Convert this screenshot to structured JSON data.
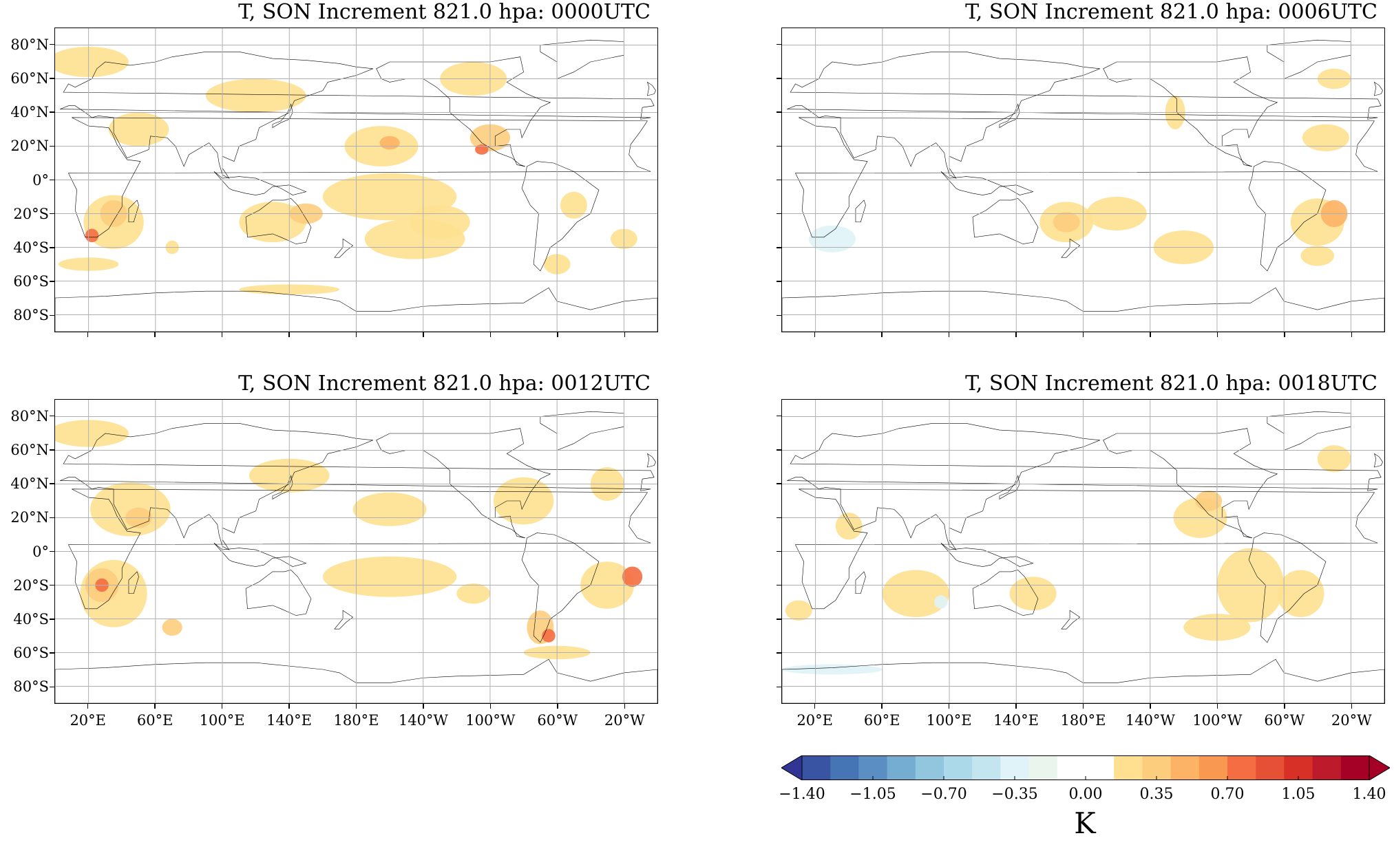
{
  "panels": [
    {
      "title": "T, SON Increment 821.0 hpa: 0000UTC",
      "show_lat_labels": true,
      "show_lon_labels": false
    },
    {
      "title": "T, SON Increment 821.0 hpa: 0006UTC",
      "show_lat_labels": false,
      "show_lon_labels": false
    },
    {
      "title": "T, SON Increment 821.0 hpa: 0012UTC",
      "show_lat_labels": true,
      "show_lon_labels": true
    },
    {
      "title": "T, SON Increment 821.0 hpa: 0018UTC",
      "show_lat_labels": false,
      "show_lon_labels": true
    }
  ],
  "lat_labels": [
    "80°N",
    "60°N",
    "40°N",
    "20°N",
    "0°",
    "20°S",
    "40°S",
    "60°S",
    "80°S"
  ],
  "lat_values": [
    80,
    60,
    40,
    20,
    0,
    -20,
    -40,
    -60,
    -80
  ],
  "lon_labels": [
    "20°E",
    "60°E",
    "100°E",
    "140°E",
    "180°E",
    "140°W",
    "100°W",
    "60°W",
    "20°W"
  ],
  "lon_values": [
    20,
    60,
    100,
    140,
    180,
    220,
    260,
    300,
    340
  ],
  "map_extent": {
    "lon_min": 0,
    "lon_max": 360,
    "lat_min": -90,
    "lat_max": 90,
    "central_longitude": 180
  },
  "colorbar": {
    "unit": "K",
    "tick_labels": [
      "−1.40",
      "−1.05",
      "−0.70",
      "−0.35",
      "0.00",
      "0.35",
      "0.70",
      "1.05",
      "1.40"
    ],
    "tick_values": [
      -1.4,
      -1.05,
      -0.7,
      -0.35,
      0.0,
      0.35,
      0.7,
      1.05,
      1.4
    ],
    "colors": [
      "#313695",
      "#3a54a4",
      "#4575b4",
      "#5b8fc4",
      "#74add1",
      "#92c5de",
      "#abd9e9",
      "#c3e5ef",
      "#e0f3f8",
      "#eaf5ee",
      "#ffffff",
      "#ffffff",
      "#fee090",
      "#fdcd7e",
      "#fdb366",
      "#f9984f",
      "#f46d43",
      "#e65035",
      "#d73027",
      "#bd1b2b",
      "#a50026",
      "#a50026"
    ],
    "extend": "both"
  }
}
